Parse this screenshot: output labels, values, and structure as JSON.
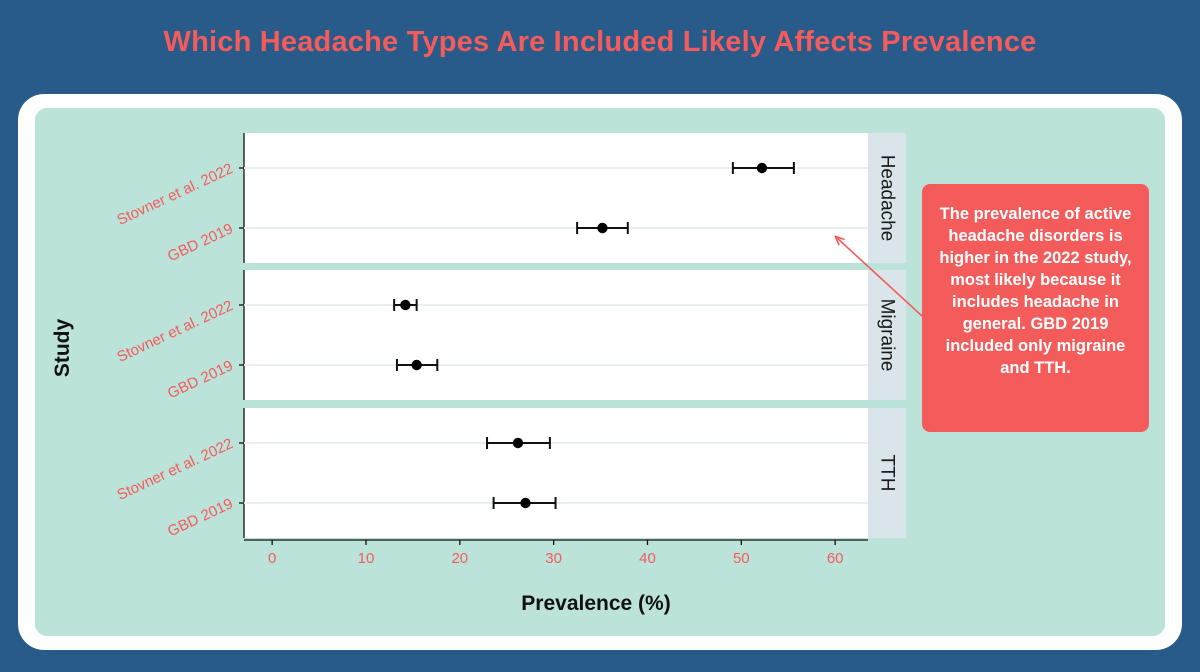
{
  "page": {
    "title": "Which Headache Types Are Included Likely Affects Prevalence",
    "callout": "The prevalence of active headache disorders is higher in the 2022 study, most likely because it includes headache in general. GBD 2019 included only migraine and TTH.",
    "colors": {
      "background": "#285a8a",
      "title": "#f45b5b",
      "panel": "#bce3d9",
      "callout": "#f45b5b",
      "facet_strip": "#d9e5ea",
      "point": "#000000"
    }
  },
  "chart_data": {
    "type": "scatter",
    "subtype": "forest-plot-with-error-bars",
    "xlabel": "Prevalence (%)",
    "ylabel": "Study",
    "xlim": [
      -3,
      63.5
    ],
    "xticks": [
      0,
      10,
      20,
      30,
      40,
      50,
      60
    ],
    "categories": [
      "Stovner et al. 2022",
      "GBD 2019"
    ],
    "grid": "horizontal",
    "facets": [
      {
        "label": "Headache",
        "points": [
          {
            "study": "Stovner et al. 2022",
            "value": 52.2,
            "lower": 49.1,
            "upper": 55.6
          },
          {
            "study": "GBD 2019",
            "value": 35.2,
            "lower": 32.5,
            "upper": 37.9
          }
        ]
      },
      {
        "label": "Migraine",
        "points": [
          {
            "study": "Stovner et al. 2022",
            "value": 14.2,
            "lower": 13.0,
            "upper": 15.4
          },
          {
            "study": "GBD 2019",
            "value": 15.4,
            "lower": 13.3,
            "upper": 17.6
          }
        ]
      },
      {
        "label": "TTH",
        "points": [
          {
            "study": "Stovner et al. 2022",
            "value": 26.2,
            "lower": 22.9,
            "upper": 29.6
          },
          {
            "study": "GBD 2019",
            "value": 27.0,
            "lower": 23.6,
            "upper": 30.2
          }
        ]
      }
    ]
  }
}
